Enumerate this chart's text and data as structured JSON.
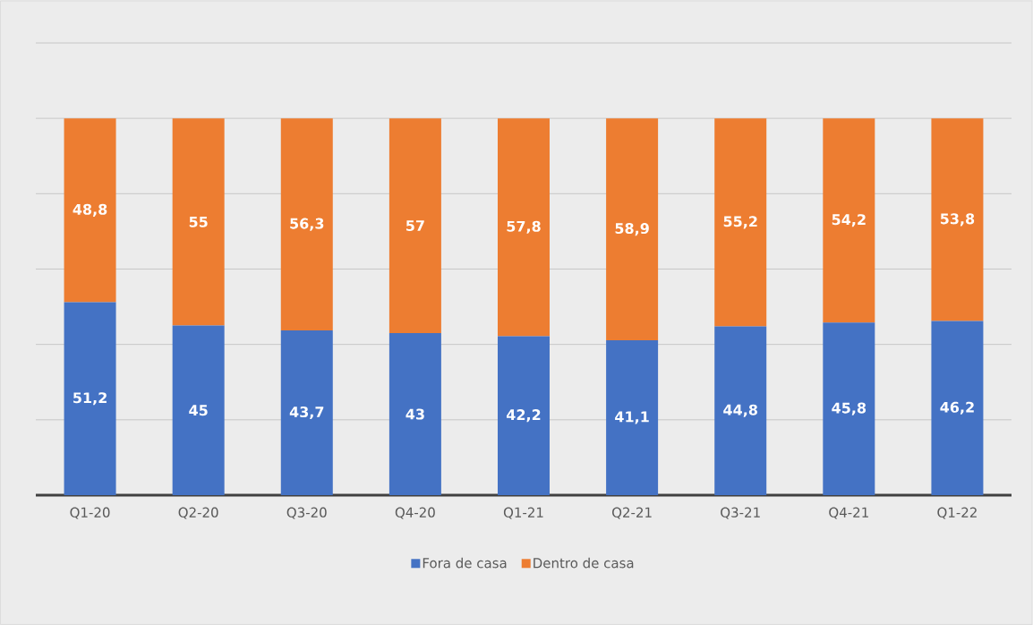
{
  "chart_data": {
    "type": "bar",
    "stacked": true,
    "categories": [
      "Q1-20",
      "Q2-20",
      "Q3-20",
      "Q4-20",
      "Q1-21",
      "Q2-21",
      "Q3-21",
      "Q4-21",
      "Q1-22"
    ],
    "series": [
      {
        "name": "Fora de casa",
        "color": "#4472c4",
        "values": [
          51.2,
          45,
          43.7,
          43,
          42.2,
          41.1,
          44.8,
          45.8,
          46.2
        ],
        "value_labels": [
          "51,2",
          "45",
          "43,7",
          "43",
          "42,2",
          "41,1",
          "44,8",
          "45,8",
          "46,2"
        ]
      },
      {
        "name": "Dentro de casa",
        "color": "#ed7d31",
        "values": [
          48.8,
          55,
          56.3,
          57,
          57.8,
          58.9,
          55.2,
          54.2,
          53.8
        ],
        "value_labels": [
          "48,8",
          "55",
          "56,3",
          "57",
          "57,8",
          "58,9",
          "55,2",
          "54,2",
          "53,8"
        ]
      }
    ],
    "ylim": [
      0,
      120
    ],
    "yticks": [
      {
        "value": 20,
        "label": null
      },
      {
        "value": 40,
        "label": null
      },
      {
        "value": 60,
        "label": null
      },
      {
        "value": 80,
        "label": null
      },
      {
        "value": 100,
        "label": null
      },
      {
        "value": 120,
        "label": null
      }
    ],
    "tick_labels": "x",
    "grid": "y",
    "legend": "bottom",
    "data_labels": true
  }
}
